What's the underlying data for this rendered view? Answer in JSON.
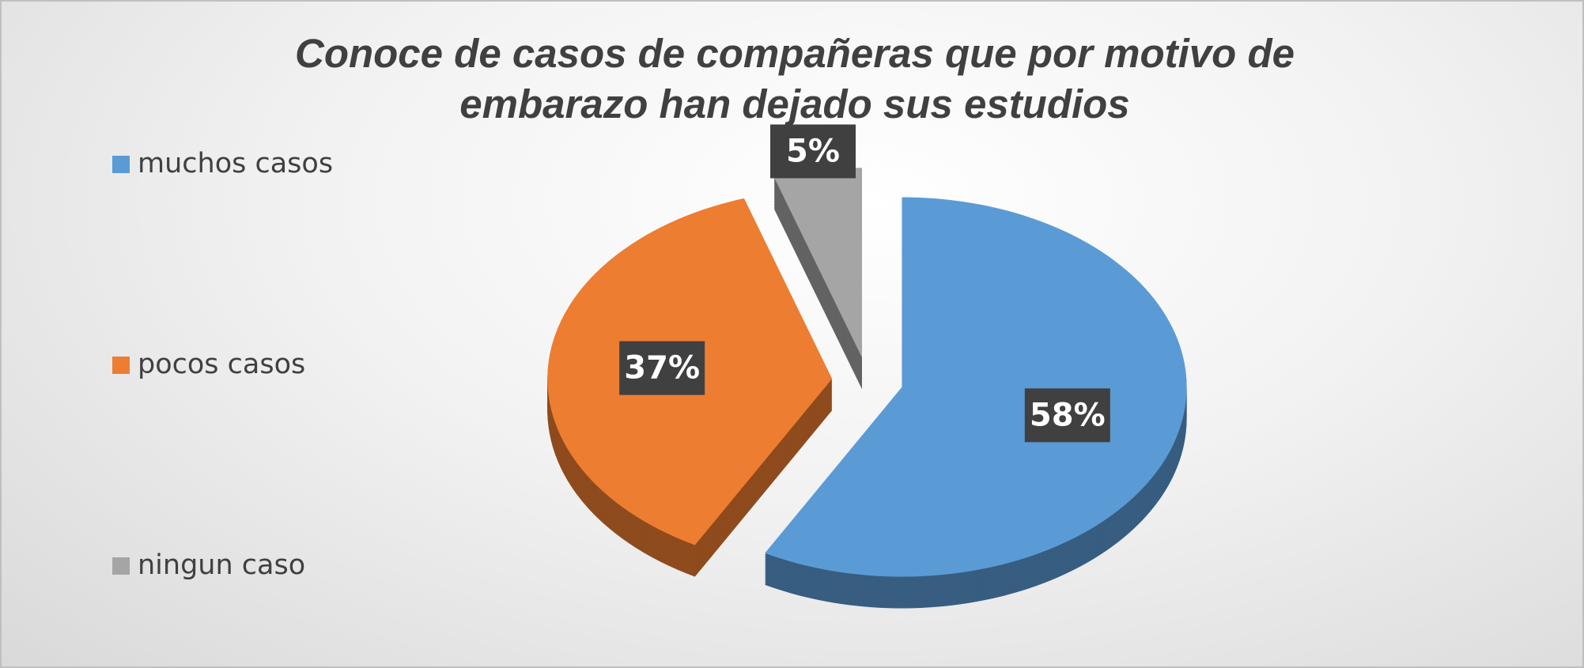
{
  "chart_data": {
    "type": "pie",
    "title": "Conoce de casos de compañeras que por motivo de embarazo han dejado sus estudios",
    "categories": [
      "muchos casos",
      "pocos casos",
      "ningun caso"
    ],
    "values": [
      58,
      37,
      5
    ],
    "value_labels": [
      "58%",
      "37%",
      "5%"
    ],
    "colors": [
      "#5b9bd5",
      "#ed7d31",
      "#a5a5a5"
    ],
    "legend": "left"
  }
}
